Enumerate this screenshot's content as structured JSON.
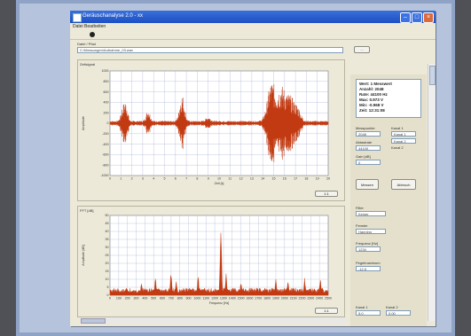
{
  "window": {
    "title": "Geräuschanalyse 2.0 - xx"
  },
  "menu": [
    "Datei",
    "Bearbeiten"
  ],
  "path": {
    "label": "Datei / Pfad",
    "value": "C:\\Messungen\\Aufnahme_03.wav",
    "button": "..."
  },
  "status": {
    "lines": [
      "Wert: 1 Messwert",
      "Anzahl: 2048",
      "Rate: 44100 Hz",
      "Max: 0.973 V",
      "Min: -0.968 V",
      "Zeit: 12:31:08"
    ]
  },
  "wave_panel": {
    "label": "Zeitsignal",
    "ylabel": "Amplitude",
    "xlabel": "Zeit [s]",
    "yticks": [
      "1000",
      "800",
      "600",
      "400",
      "200",
      "0",
      "-200",
      "-400",
      "-600",
      "-800",
      "-1000"
    ],
    "xticks": [
      "0",
      "1",
      "2",
      "3",
      "4",
      "5",
      "6",
      "7",
      "8",
      "9",
      "10",
      "11",
      "12",
      "13",
      "14",
      "15",
      "16",
      "17",
      "18",
      "19",
      "20"
    ],
    "zoom": "1:1"
  },
  "spec_panel": {
    "label": "FFT [dB]",
    "ylabel": "Amplitude [dB]",
    "xlabel": "Frequenz [Hz]",
    "yticks": [
      "50",
      "45",
      "40",
      "35",
      "30",
      "25",
      "20",
      "15",
      "10",
      "5",
      "0"
    ],
    "xticks": [
      "0",
      "100",
      "200",
      "300",
      "400",
      "500",
      "600",
      "700",
      "800",
      "900",
      "1000",
      "1100",
      "1200",
      "1300",
      "1400",
      "1500",
      "1600",
      "1700",
      "1800",
      "1900",
      "2000",
      "2100",
      "2200",
      "2300",
      "2400",
      "2500"
    ],
    "zoom": "1:1"
  },
  "controls": {
    "samples_label": "Messpunkte",
    "samples_value": "2048",
    "rate_label": "Abtastrate",
    "rate_value": "44100",
    "channel_label": "Kanal 1",
    "gain_label": "Gain [dB]",
    "gain_value": "0",
    "right_label": "Kanal 2",
    "right_value1": "Kanal 1",
    "right_value2": "Kanal 2",
    "start_button": "Messen",
    "stop_button": "Abbruch",
    "filter_label": "Filter",
    "filter_value": "Keiner",
    "window_label": "Fenster",
    "window_value": "Hanning",
    "peak_label": "Frequenz [Hz]",
    "peak_value": "1234",
    "level_label": "Pegelmaximum",
    "level_value": "-12.5",
    "footer1": "Kanal 1",
    "footer2": "Kanal 2",
    "footer_value1": "5.0",
    "footer_value2": "0.00"
  },
  "colors": {
    "signal": "#c23a12",
    "plot_bg": "#ffffff",
    "grid": "#a9b3d2",
    "titlebar": "#2456c8"
  },
  "chart_data": [
    {
      "type": "area",
      "title": "",
      "xlabel": "Zeit [s]",
      "ylabel": "Amplitude",
      "xlim": [
        0,
        20
      ],
      "ylim": [
        -1000,
        1000
      ],
      "grid": true,
      "series": [
        {
          "bursts": [
            {
              "t": 1.2,
              "amp": 280,
              "w": 0.25
            },
            {
              "t": 1.5,
              "amp": 300,
              "w": 0.2
            },
            {
              "t": 3.5,
              "amp": 220,
              "w": 0.25
            },
            {
              "t": 6.6,
              "amp": 520,
              "w": 0.3
            },
            {
              "t": 9.0,
              "amp": 80,
              "w": 0.3
            },
            {
              "t": 14.8,
              "amp": 740,
              "w": 0.5
            },
            {
              "t": 15.7,
              "amp": 620,
              "w": 0.5
            },
            {
              "t": 16.5,
              "amp": 450,
              "w": 0.5
            },
            {
              "t": 17.2,
              "amp": 240,
              "w": 0.4
            }
          ],
          "noise": 45
        }
      ]
    },
    {
      "type": "area",
      "title": "",
      "xlabel": "Frequenz [Hz]",
      "ylabel": "Amplitude [dB]",
      "xlim": [
        0,
        2500
      ],
      "ylim": [
        0,
        50
      ],
      "grid": true,
      "series": [
        {
          "peaks": [
            {
              "f": 360,
              "db": 8
            },
            {
              "f": 520,
              "db": 11
            },
            {
              "f": 700,
              "db": 16
            },
            {
              "f": 760,
              "db": 9
            },
            {
              "f": 1010,
              "db": 12
            },
            {
              "f": 1270,
              "db": 47
            },
            {
              "f": 1330,
              "db": 14
            },
            {
              "f": 1500,
              "db": 9
            },
            {
              "f": 1900,
              "db": 10
            },
            {
              "f": 2040,
              "db": 9
            },
            {
              "f": 2230,
              "db": 11
            },
            {
              "f": 2410,
              "db": 10
            }
          ],
          "floor": 3
        }
      ]
    }
  ]
}
